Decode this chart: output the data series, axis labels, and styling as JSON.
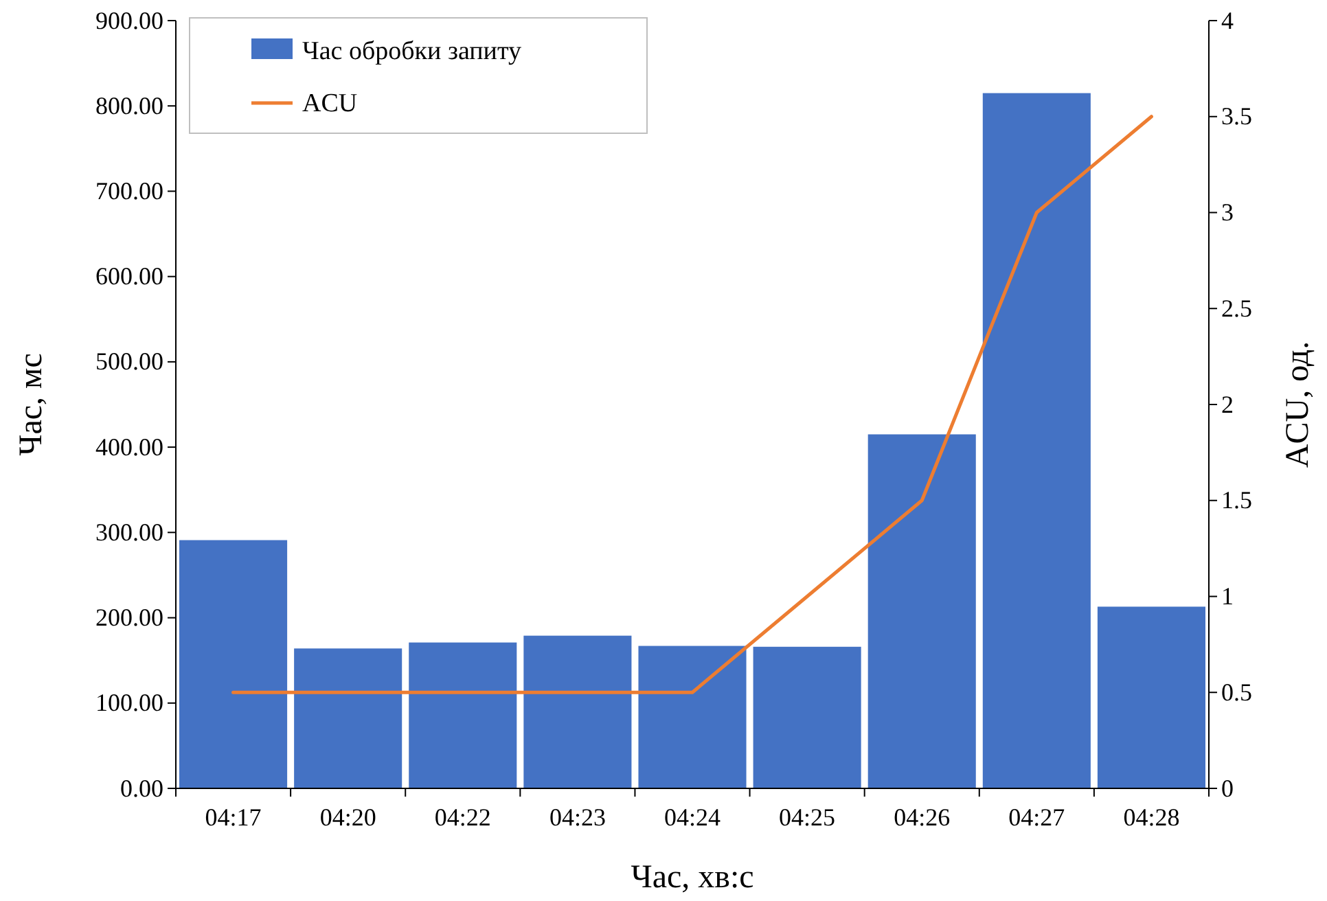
{
  "chart_data": {
    "type": "bar",
    "xlabel": "Час, хв:с",
    "ylabel": "Час, мс",
    "y2label": "ACU, од.",
    "categories": [
      "04:17",
      "04:20",
      "04:22",
      "04:23",
      "04:24",
      "04:25",
      "04:26",
      "04:27",
      "04:28"
    ],
    "series": [
      {
        "name": "Час обробки запиту",
        "color": "#4472c4",
        "values": [
          291,
          164,
          171,
          179,
          167,
          166,
          415,
          815,
          213
        ]
      },
      {
        "name": "ACU",
        "type": "line",
        "axis": "y2",
        "color": "#ed7d31",
        "values": [
          0.5,
          0.5,
          0.5,
          0.5,
          0.5,
          1,
          1.5,
          3,
          3.5
        ]
      }
    ],
    "ylim": [
      0,
      900
    ],
    "yticks": [
      {
        "value": 0,
        "label": "0.00"
      },
      {
        "value": 100,
        "label": "100.00"
      },
      {
        "value": 200,
        "label": "200.00"
      },
      {
        "value": 300,
        "label": "300.00"
      },
      {
        "value": 400,
        "label": "400.00"
      },
      {
        "value": 500,
        "label": "500.00"
      },
      {
        "value": 600,
        "label": "600.00"
      },
      {
        "value": 700,
        "label": "700.00"
      },
      {
        "value": 800,
        "label": "800.00"
      },
      {
        "value": 900,
        "label": "900.00"
      }
    ],
    "y2lim": [
      0,
      4
    ],
    "y2ticks": [
      0,
      0.5,
      1,
      1.5,
      2,
      2.5,
      3,
      3.5,
      4
    ],
    "legend": "top left",
    "grid": false
  }
}
